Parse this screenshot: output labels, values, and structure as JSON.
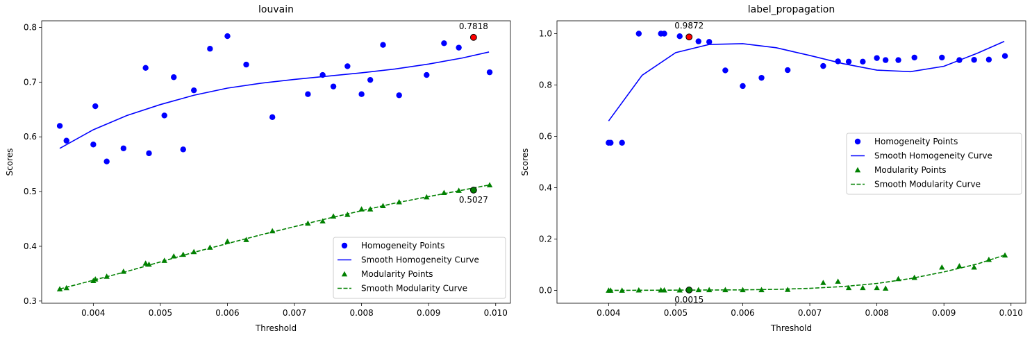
{
  "chart_data": [
    {
      "type": "scatter",
      "title": "louvain",
      "xlabel": "Threshold",
      "ylabel": "Scores",
      "xlim": [
        0.00323,
        0.01022
      ],
      "ylim": [
        0.296,
        0.812
      ],
      "xticks": [
        "0.004",
        "0.005",
        "0.006",
        "0.007",
        "0.008",
        "0.009",
        "0.010"
      ],
      "yticks": [
        "0.3",
        "0.4",
        "0.5",
        "0.6",
        "0.7",
        "0.8"
      ],
      "legend_position": "lower-right",
      "series": [
        {
          "name": "Homogeneity Points",
          "kind": "scatter",
          "marker": "circle",
          "color": "#0000ff",
          "x": [
            0.0035,
            0.0036,
            0.004,
            0.00403,
            0.0042,
            0.00445,
            0.00478,
            0.00483,
            0.00506,
            0.0052,
            0.00534,
            0.0055,
            0.00574,
            0.006,
            0.00628,
            0.00667,
            0.0072,
            0.00742,
            0.00758,
            0.00779,
            0.008,
            0.00813,
            0.00832,
            0.00856,
            0.00897,
            0.00923,
            0.00945,
            0.00967,
            0.00991
          ],
          "y": [
            0.62,
            0.593,
            0.586,
            0.656,
            0.555,
            0.579,
            0.726,
            0.57,
            0.639,
            0.709,
            0.577,
            0.685,
            0.761,
            0.784,
            0.732,
            0.636,
            0.678,
            0.713,
            0.692,
            0.729,
            0.678,
            0.704,
            0.768,
            0.676,
            0.713,
            0.771,
            0.763,
            0.7818,
            0.718
          ]
        },
        {
          "name": "Smooth Homogeneity Curve",
          "kind": "line",
          "style": "solid",
          "color": "#0000ff",
          "x": [
            0.0035,
            0.004,
            0.0045,
            0.005,
            0.0055,
            0.006,
            0.0065,
            0.007,
            0.0075,
            0.008,
            0.0085,
            0.009,
            0.0095,
            0.0099
          ],
          "y": [
            0.579,
            0.613,
            0.639,
            0.659,
            0.676,
            0.689,
            0.698,
            0.705,
            0.711,
            0.717,
            0.724,
            0.733,
            0.744,
            0.755
          ]
        },
        {
          "name": "Modularity Points",
          "kind": "scatter",
          "marker": "triangle",
          "color": "#008000",
          "x": [
            0.0035,
            0.0036,
            0.004,
            0.00403,
            0.0042,
            0.00445,
            0.00478,
            0.00483,
            0.00506,
            0.0052,
            0.00534,
            0.0055,
            0.00574,
            0.006,
            0.00628,
            0.00667,
            0.0072,
            0.00742,
            0.00758,
            0.00779,
            0.008,
            0.00813,
            0.00832,
            0.00856,
            0.00897,
            0.00923,
            0.00945,
            0.00967,
            0.00991
          ],
          "y": [
            0.322,
            0.324,
            0.337,
            0.34,
            0.345,
            0.354,
            0.369,
            0.367,
            0.374,
            0.382,
            0.385,
            0.39,
            0.398,
            0.409,
            0.412,
            0.428,
            0.442,
            0.446,
            0.455,
            0.458,
            0.468,
            0.468,
            0.474,
            0.481,
            0.49,
            0.498,
            0.502,
            0.5027,
            0.512
          ]
        },
        {
          "name": "Smooth Modularity Curve",
          "kind": "line",
          "style": "dashed",
          "color": "#008000",
          "x": [
            0.0035,
            0.0045,
            0.0055,
            0.0065,
            0.0075,
            0.0085,
            0.0099
          ],
          "y": [
            0.322,
            0.354,
            0.389,
            0.421,
            0.451,
            0.479,
            0.512
          ]
        }
      ],
      "highlights": [
        {
          "x": 0.00967,
          "y": 0.7818,
          "fill": "#ff0000",
          "label": "0.7818",
          "label_pos": "above"
        },
        {
          "x": 0.00967,
          "y": 0.5027,
          "fill": "#008000",
          "label": "0.5027",
          "label_pos": "below"
        }
      ]
    },
    {
      "type": "scatter",
      "title": "label_propagation",
      "xlabel": "Threshold",
      "ylabel": "Scores",
      "xlim": [
        0.00323,
        0.01022
      ],
      "ylim": [
        -0.05,
        1.05
      ],
      "xticks": [
        "0.004",
        "0.005",
        "0.006",
        "0.007",
        "0.008",
        "0.009",
        "0.010"
      ],
      "yticks": [
        "0.0",
        "0.2",
        "0.4",
        "0.6",
        "0.8",
        "1.0"
      ],
      "legend_position": "center-right",
      "series": [
        {
          "name": "Homogeneity Points",
          "kind": "scatter",
          "marker": "circle",
          "color": "#0000ff",
          "x": [
            0.004,
            0.00403,
            0.0042,
            0.00445,
            0.00478,
            0.00483,
            0.00506,
            0.0052,
            0.00534,
            0.0055,
            0.00574,
            0.006,
            0.00628,
            0.00667,
            0.0072,
            0.00742,
            0.00758,
            0.00779,
            0.008,
            0.00813,
            0.00832,
            0.00856,
            0.00897,
            0.00923,
            0.00945,
            0.00967,
            0.00991
          ],
          "y": [
            0.575,
            0.575,
            0.575,
            1.0,
            1.0,
            1.0,
            0.99,
            0.9872,
            0.97,
            0.968,
            0.857,
            0.796,
            0.828,
            0.858,
            0.874,
            0.892,
            0.891,
            0.891,
            0.905,
            0.897,
            0.897,
            0.907,
            0.907,
            0.897,
            0.898,
            0.899,
            0.913
          ]
        },
        {
          "name": "Smooth Homogeneity Curve",
          "kind": "line",
          "style": "solid",
          "color": "#0000ff",
          "x": [
            0.004,
            0.0045,
            0.005,
            0.0055,
            0.006,
            0.0065,
            0.007,
            0.0075,
            0.008,
            0.0085,
            0.009,
            0.0095,
            0.0099
          ],
          "y": [
            0.66,
            0.838,
            0.926,
            0.958,
            0.961,
            0.945,
            0.915,
            0.883,
            0.858,
            0.852,
            0.873,
            0.924,
            0.97
          ]
        },
        {
          "name": "Modularity Points",
          "kind": "scatter",
          "marker": "triangle",
          "color": "#008000",
          "x": [
            0.004,
            0.00403,
            0.0042,
            0.00445,
            0.00478,
            0.00483,
            0.00506,
            0.0052,
            0.00534,
            0.0055,
            0.00574,
            0.006,
            0.00628,
            0.00667,
            0.0072,
            0.00742,
            0.00758,
            0.00779,
            0.008,
            0.00813,
            0.00832,
            0.00856,
            0.00897,
            0.00923,
            0.00945,
            0.00967,
            0.00991
          ],
          "y": [
            0.0,
            0.0,
            0.0,
            0.001,
            0.001,
            0.001,
            0.001,
            0.0015,
            0.002,
            0.002,
            0.002,
            0.002,
            0.002,
            0.003,
            0.03,
            0.035,
            0.01,
            0.01,
            0.01,
            0.008,
            0.045,
            0.05,
            0.09,
            0.095,
            0.09,
            0.12,
            0.137
          ]
        },
        {
          "name": "Smooth Modularity Curve",
          "kind": "line",
          "style": "dashed",
          "color": "#008000",
          "x": [
            0.004,
            0.005,
            0.006,
            0.0065,
            0.007,
            0.0075,
            0.008,
            0.0085,
            0.009,
            0.0095,
            0.0099
          ],
          "y": [
            0.0,
            0.001,
            0.002,
            0.004,
            0.008,
            0.015,
            0.027,
            0.046,
            0.072,
            0.103,
            0.137
          ]
        }
      ],
      "highlights": [
        {
          "x": 0.0052,
          "y": 0.9872,
          "fill": "#ff0000",
          "label": "0.9872",
          "label_pos": "above"
        },
        {
          "x": 0.0052,
          "y": 0.0015,
          "fill": "#008000",
          "label": "0.0015",
          "label_pos": "below"
        }
      ]
    }
  ]
}
